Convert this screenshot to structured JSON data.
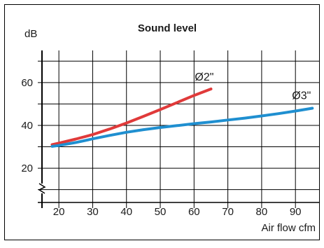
{
  "chart_data": {
    "type": "line",
    "title": "Sound level",
    "ylabel": "dB",
    "xlabel": "Air flow cfm",
    "xlim": [
      15,
      97
    ],
    "ylim": [
      4,
      75
    ],
    "x_ticks": [
      20,
      30,
      40,
      50,
      60,
      70,
      80,
      90
    ],
    "y_ticks": [
      20,
      40,
      60
    ],
    "x_grid": [
      20,
      30,
      40,
      50,
      60,
      70,
      80,
      90
    ],
    "y_grid": [
      10,
      20,
      30,
      40,
      50,
      60,
      70
    ],
    "grid": true,
    "legend": "none",
    "axis_break": true,
    "series": [
      {
        "name": "Ø2\"",
        "color": "#e03a3a",
        "x": [
          18,
          20,
          25,
          30,
          35,
          40,
          45,
          50,
          55,
          60,
          65
        ],
        "y": [
          31,
          31.7,
          33.6,
          35.7,
          38.3,
          41.1,
          44.2,
          47.4,
          50.7,
          54.0,
          57.0
        ]
      },
      {
        "name": "Ø3\"",
        "color": "#1f8fd0",
        "x": [
          18,
          20,
          25,
          30,
          35,
          40,
          45,
          50,
          55,
          60,
          65,
          70,
          75,
          80,
          85,
          90,
          95
        ],
        "y": [
          30.2,
          30.6,
          32.0,
          33.7,
          35.3,
          36.8,
          38.0,
          39.0,
          39.9,
          40.8,
          41.6,
          42.5,
          43.4,
          44.4,
          45.5,
          46.7,
          48.0
        ]
      }
    ]
  }
}
